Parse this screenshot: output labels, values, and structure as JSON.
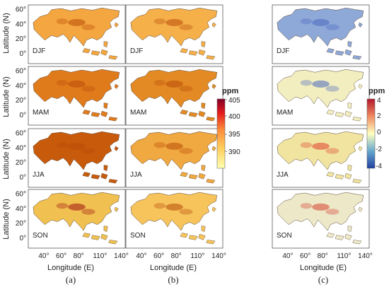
{
  "ylabel": "Latitude (N)",
  "xlabel": "Longitude (E)",
  "lat_ticks": [
    "60°",
    "40°",
    "20°",
    "0°"
  ],
  "lon_ticks": [
    "40°",
    "60°",
    "80°",
    "110°",
    "140°"
  ],
  "seasons": [
    "DJF",
    "MAM",
    "JJA",
    "SON"
  ],
  "panel_letters": [
    "(a)",
    "(b)",
    "(c)"
  ],
  "colorbar_abs": {
    "title": "ppm",
    "ticks": [
      "405",
      "400",
      "395",
      "390"
    ],
    "colors": [
      "#ffffb2",
      "#fecc5c",
      "#fd8d3c",
      "#e31a1c",
      "#800026"
    ]
  },
  "colorbar_diff": {
    "title": "ppm",
    "ticks": [
      "4",
      "2",
      "0",
      "-2",
      "-4"
    ],
    "colors": [
      "#b2182b",
      "#ef8a62",
      "#ffffbf",
      "#67a9cf",
      "#2140a0"
    ]
  },
  "map_palettes": {
    "a": [
      "#f4a640",
      "#e07b1c",
      "#c85a0c",
      "#f0c050"
    ],
    "b": [
      "#f5b04a",
      "#e38a24",
      "#f0a840",
      "#f7c45c"
    ],
    "c": [
      "#8ea8d8",
      "#f2eec0",
      "#f0e4a0",
      "#ece8c8"
    ]
  }
}
